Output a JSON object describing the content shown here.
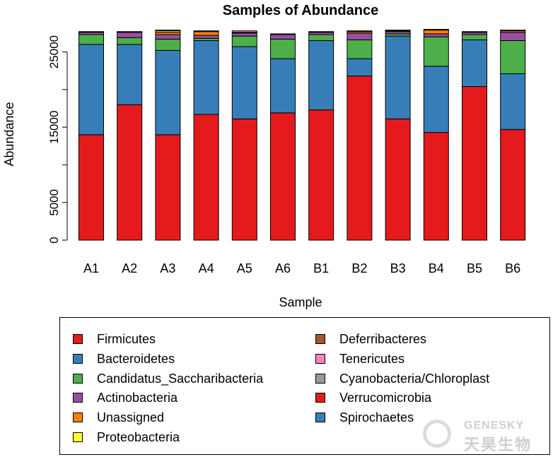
{
  "chart_data": {
    "type": "bar",
    "stacked": true,
    "title": "Samples of Abundance",
    "xlabel": "Sample",
    "ylabel": "Abundance",
    "ylim": [
      0,
      28000
    ],
    "yticks": [
      0,
      5000,
      15000,
      25000
    ],
    "grid": false,
    "legend_position": "bottom",
    "categories": [
      "A1",
      "A2",
      "A3",
      "A4",
      "A5",
      "A6",
      "B1",
      "B2",
      "B3",
      "B4",
      "B5",
      "B6"
    ],
    "series": [
      {
        "name": "Firmicutes",
        "color": "#e41a1c",
        "values": [
          14000,
          18000,
          14000,
          16700,
          16100,
          16900,
          17300,
          21800,
          16100,
          14300,
          20400,
          14700
        ]
      },
      {
        "name": "Bacteroidetes",
        "color": "#377eb8",
        "values": [
          12000,
          8000,
          11200,
          9800,
          9600,
          7200,
          9200,
          2300,
          11000,
          8800,
          6200,
          7400
        ]
      },
      {
        "name": "Candidatus_Saccharibacteria",
        "color": "#4daf4a",
        "values": [
          1300,
          900,
          1500,
          300,
          1400,
          2600,
          800,
          2500,
          300,
          3900,
          700,
          4400
        ]
      },
      {
        "name": "Actinobacteria",
        "color": "#984ea3",
        "values": [
          300,
          700,
          600,
          400,
          400,
          600,
          300,
          900,
          300,
          400,
          300,
          1100
        ]
      },
      {
        "name": "Unassigned",
        "color": "#ff7f00",
        "values": [
          0,
          0,
          300,
          500,
          0,
          0,
          0,
          200,
          0,
          500,
          0,
          200
        ]
      },
      {
        "name": "Proteobacteria",
        "color": "#ffff33",
        "values": [
          0,
          0,
          200,
          0,
          0,
          0,
          0,
          0,
          0,
          0,
          0,
          0
        ]
      },
      {
        "name": "Deferribacteres",
        "color": "#a65628",
        "values": [
          100,
          100,
          100,
          100,
          100,
          100,
          100,
          100,
          100,
          100,
          100,
          100
        ]
      },
      {
        "name": "Tenericutes",
        "color": "#f781bf",
        "values": [
          0,
          0,
          0,
          0,
          200,
          0,
          0,
          0,
          0,
          0,
          0,
          0
        ]
      },
      {
        "name": "Cyanobacteria/Chloroplast",
        "color": "#999999",
        "values": [
          0,
          0,
          0,
          0,
          0,
          0,
          0,
          0,
          100,
          0,
          0,
          0
        ]
      },
      {
        "name": "Verrucomicrobia",
        "color": "#e41a1c",
        "values": [
          0,
          0,
          0,
          0,
          0,
          0,
          0,
          0,
          0,
          0,
          0,
          0
        ]
      },
      {
        "name": "Spirochaetes",
        "color": "#377eb8",
        "values": [
          0,
          0,
          0,
          0,
          0,
          0,
          0,
          0,
          0,
          0,
          0,
          0
        ]
      }
    ]
  },
  "legend": {
    "items": [
      {
        "label": "Firmicutes",
        "color": "#e41a1c"
      },
      {
        "label": "Bacteroidetes",
        "color": "#377eb8"
      },
      {
        "label": "Candidatus_Saccharibacteria",
        "color": "#4daf4a"
      },
      {
        "label": "Actinobacteria",
        "color": "#984ea3"
      },
      {
        "label": "Unassigned",
        "color": "#ff7f00"
      },
      {
        "label": "Proteobacteria",
        "color": "#ffff33"
      },
      {
        "label": "Deferribacteres",
        "color": "#a65628"
      },
      {
        "label": "Tenericutes",
        "color": "#f781bf"
      },
      {
        "label": "Cyanobacteria/Chloroplast",
        "color": "#999999"
      },
      {
        "label": "Verrucomicrobia",
        "color": "#e41a1c"
      },
      {
        "label": "Spirochaetes",
        "color": "#377eb8"
      }
    ]
  },
  "watermark": {
    "brand_en": "GENESKY",
    "brand_zh": "天昊生物"
  }
}
